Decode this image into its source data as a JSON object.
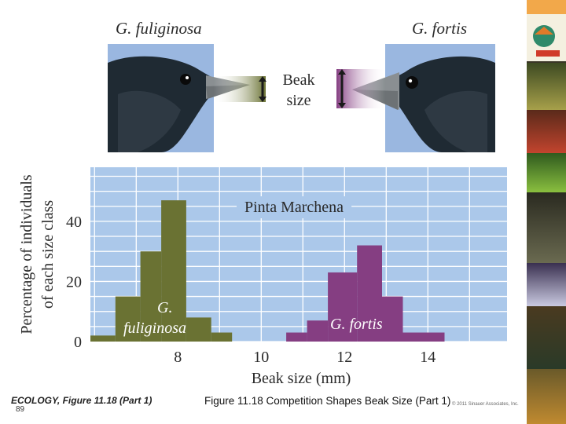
{
  "footer": {
    "book_label": "ECOLOGY, Figure 11.18 (Part 1)",
    "slide_number": "89",
    "caption": "Figure 11.18  Competition Shapes Beak Size (Part 1)",
    "copyright": "© 2011 Sinauer Associates, Inc."
  },
  "illustration": {
    "left_species": "G. fuliginosa",
    "right_species": "G. fortis",
    "beak_label_line1": "Beak",
    "beak_label_line2": "size"
  },
  "colors": {
    "plot_bg": "#abc8ea",
    "grid": "#ffffff",
    "fuliginosa": "#6a7233",
    "fortis": "#853e82",
    "text": "#2a2a2a",
    "sidebar": "#3a3526"
  },
  "chart_data": {
    "type": "bar",
    "title": "Pinta Marchena",
    "xlabel": "Beak size (mm)",
    "ylabel_line1": "Percentage of individuals",
    "ylabel_line2": "of each size class",
    "xlim": [
      5.9,
      15.9
    ],
    "ylim": [
      0,
      58
    ],
    "x_ticks": [
      8,
      10,
      12,
      14
    ],
    "y_ticks": [
      0,
      20,
      40
    ],
    "grid": true,
    "series": [
      {
        "name": "G. fuliginosa",
        "name_line1": "G.",
        "name_line2": "fuliginosa",
        "bin_edges": [
          5.9,
          6.5,
          7.1,
          7.6,
          8.2,
          8.8,
          9.3
        ],
        "values": [
          2,
          15,
          30,
          47,
          8,
          3
        ]
      },
      {
        "name": "G. fortis",
        "bin_edges": [
          10.6,
          11.1,
          11.6,
          12.3,
          12.9,
          13.4,
          14.4
        ],
        "values": [
          3,
          7,
          23,
          32,
          15,
          3
        ]
      }
    ]
  }
}
